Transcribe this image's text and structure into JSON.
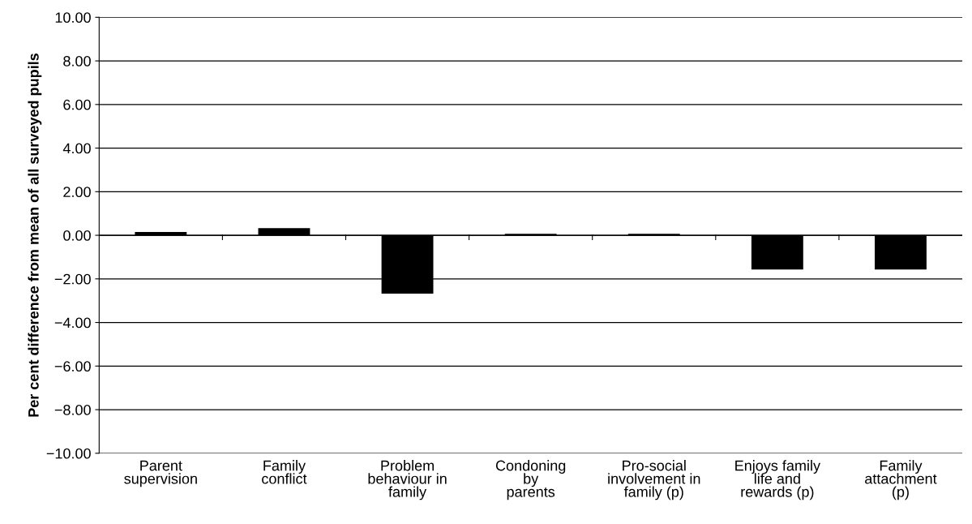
{
  "chart_data": {
    "type": "bar",
    "ylabel": "Per cent difference from mean of all surveyed pupils",
    "categories": [
      "Parent\nsupervision",
      "Family\nconflict",
      "Problem\nbehaviour in\nfamily",
      "Condoning\nby\nparents",
      "Pro-social\ninvolvement in\nfamily (p)",
      "Enjoys family\nlife and\nrewards (p)",
      "Family\nattachment\n(p)"
    ],
    "values": [
      0.15,
      0.33,
      -2.68,
      0.07,
      0.07,
      -1.57,
      -1.57
    ],
    "color": "#000000",
    "ylim": [
      -10,
      10
    ],
    "yticks": [
      {
        "value": -10,
        "label": "−10.00"
      },
      {
        "value": -8,
        "label": "−8.00"
      },
      {
        "value": -6,
        "label": "−6.00"
      },
      {
        "value": -4,
        "label": "−4.00"
      },
      {
        "value": -2,
        "label": "−2.00"
      },
      {
        "value": 0,
        "label": "0.00"
      },
      {
        "value": 2,
        "label": "2.00"
      },
      {
        "value": 4,
        "label": "4.00"
      },
      {
        "value": 6,
        "label": "6.00"
      },
      {
        "value": 8,
        "label": "8.00"
      },
      {
        "value": 10,
        "label": "10.00"
      }
    ],
    "grid": "y",
    "legend": false
  }
}
